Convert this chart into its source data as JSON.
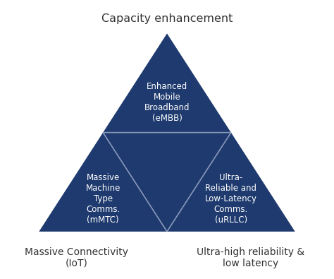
{
  "bg_color": "#ffffff",
  "triangle_color": "#1e3a6e",
  "line_color": "#8899bb",
  "text_color_white": "#ffffff",
  "text_color_dark": "#333333",
  "top_label": "Capacity enhancement",
  "bottom_left_label": "Massive Connectivity\n(IoT)",
  "bottom_right_label": "Ultra-high reliability &\nlow latency",
  "embb_text": "Enhanced\nMobile\nBroadband\n(eMBB)",
  "mmtc_text": "Massive\nMachine\nType\nComms.\n(mMTC)",
  "urllc_text": "Ultra-\nReliable and\nLow-Latency\nComms.\n(uRLLC)",
  "figsize": [
    4.74,
    3.95
  ],
  "dpi": 100
}
